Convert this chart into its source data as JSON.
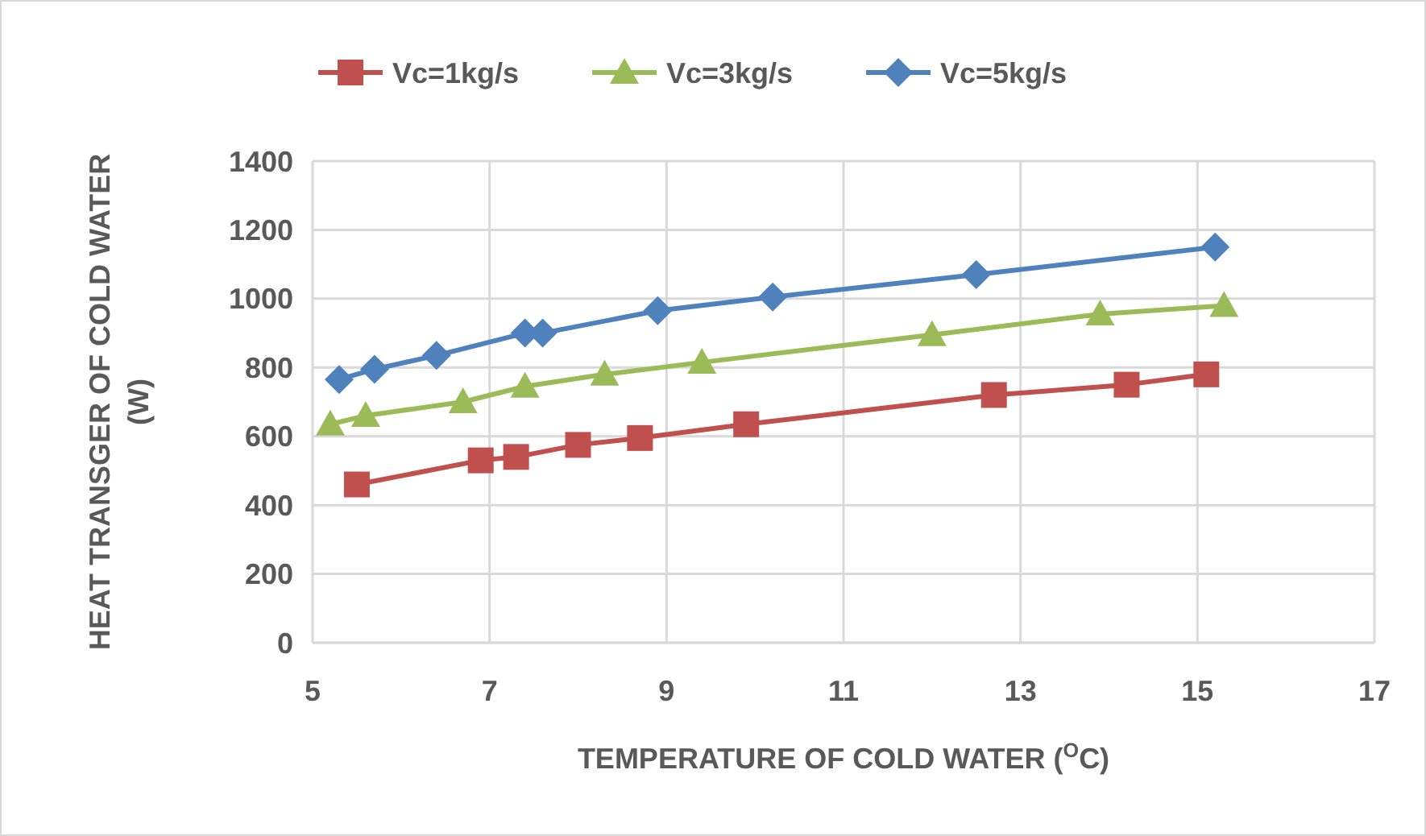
{
  "chart_data": {
    "type": "line",
    "xlabel": "TEMPERATURE OF COLD WATER ($^{O}$C)",
    "ylabel": "HEAT TRANSGER OF COLD WATER (W)",
    "xlim": [
      5,
      17
    ],
    "xticks": [
      5,
      7,
      9,
      11,
      13,
      15,
      17
    ],
    "ylim": [
      0,
      1400
    ],
    "yticks": [
      0,
      200,
      400,
      600,
      800,
      1000,
      1200,
      1400
    ],
    "grid": true,
    "legend": "top",
    "series": [
      {
        "name": "Vc=1kg/s",
        "color": "#c0504d",
        "marker": "square",
        "x": [
          5.5,
          6.9,
          7.3,
          8.0,
          8.7,
          9.9,
          12.7,
          14.2,
          15.1
        ],
        "values": [
          460,
          530,
          540,
          575,
          595,
          635,
          720,
          750,
          780
        ]
      },
      {
        "name": "Vc=3kg/s",
        "color": "#9bbb59",
        "marker": "triangle",
        "x": [
          5.2,
          5.6,
          6.7,
          7.4,
          8.3,
          9.4,
          12.0,
          13.9,
          15.3
        ],
        "values": [
          635,
          660,
          700,
          745,
          780,
          815,
          895,
          955,
          980
        ]
      },
      {
        "name": "Vc=5kg/s",
        "color": "#4f81bd",
        "marker": "diamond",
        "x": [
          5.3,
          5.7,
          6.4,
          7.4,
          7.6,
          8.9,
          10.2,
          12.5,
          15.2
        ],
        "values": [
          765,
          795,
          835,
          900,
          900,
          965,
          1005,
          1070,
          1150
        ]
      }
    ]
  }
}
